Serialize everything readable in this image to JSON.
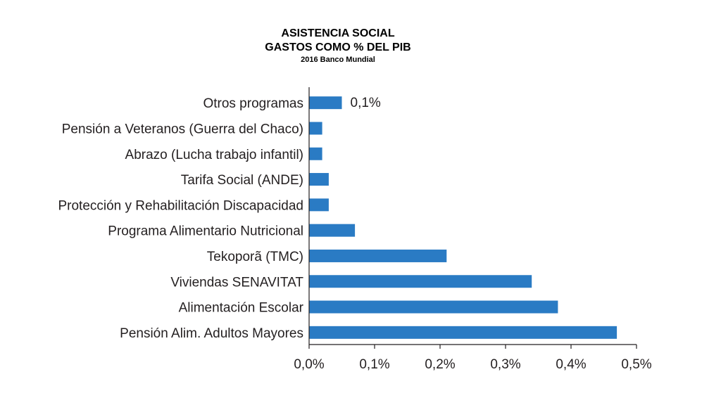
{
  "header": {
    "title": "ASISTENCIA SOCIAL",
    "subtitle": "GASTOS COMO % DEL PIB",
    "source": "2016  Banco Mundial"
  },
  "chart_data": {
    "type": "bar",
    "orientation": "horizontal",
    "categories": [
      "Otros programas",
      "Pensión a Veteranos (Guerra del Chaco)",
      "Abrazo (Lucha trabajo infantil)",
      "Tarifa Social (ANDE)",
      "Protección y Rehabilitación Discapacidad",
      "Programa Alimentario Nutricional",
      "Tekoporã (TMC)",
      "Viviendas SENAVITAT",
      "Alimentación Escolar",
      "Pensión Alim. Adultos Mayores"
    ],
    "values": [
      0.05,
      0.02,
      0.02,
      0.03,
      0.03,
      0.07,
      0.21,
      0.34,
      0.38,
      0.47
    ],
    "data_labels": [
      {
        "category": "Otros programas",
        "text": "0,1%"
      }
    ],
    "xlim": [
      0,
      0.5
    ],
    "xticks": [
      "0,0%",
      "0,1%",
      "0,2%",
      "0,3%",
      "0,4%",
      "0,5%"
    ],
    "grid": false,
    "bar_color": "#2a7bc4"
  }
}
